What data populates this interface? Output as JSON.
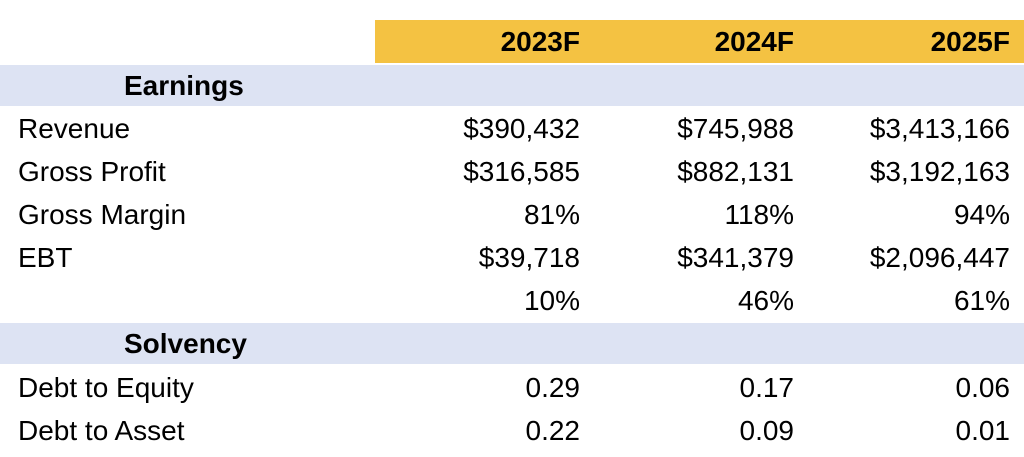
{
  "header": {
    "years": [
      "2023F",
      "2024F",
      "2025F"
    ]
  },
  "sections": {
    "earnings": {
      "title": "Earnings",
      "rows": [
        {
          "label": "Revenue",
          "values": [
            "$390,432",
            "$745,988",
            "$3,413,166"
          ]
        },
        {
          "label": "Gross Profit",
          "values": [
            "$316,585",
            "$882,131",
            "$3,192,163"
          ]
        },
        {
          "label": "Gross Margin",
          "values": [
            "81%",
            "118%",
            "94%"
          ]
        },
        {
          "label": "EBT",
          "values": [
            "$39,718",
            "$341,379",
            "$2,096,447"
          ]
        },
        {
          "label": "",
          "values": [
            "10%",
            "46%",
            "61%"
          ]
        }
      ]
    },
    "solvency": {
      "title": "Solvency",
      "rows": [
        {
          "label": "Debt to Equity",
          "values": [
            "0.29",
            "0.17",
            "0.06"
          ]
        },
        {
          "label": "Debt to Asset",
          "values": [
            "0.22",
            "0.09",
            "0.01"
          ]
        }
      ]
    }
  },
  "colors": {
    "header_fill": "#f4c242",
    "section_fill": "#dde3f3"
  }
}
